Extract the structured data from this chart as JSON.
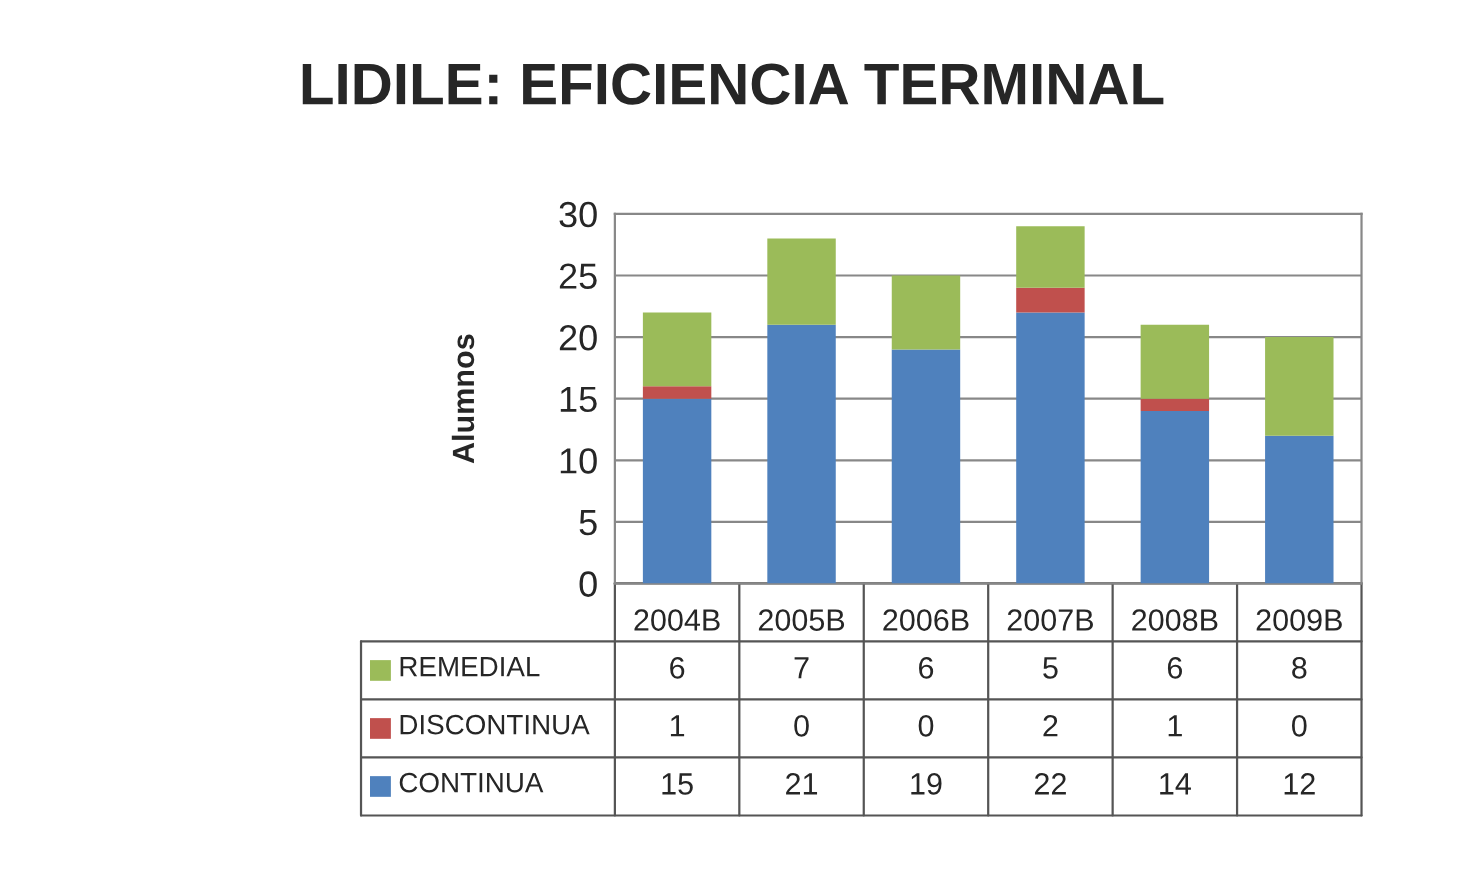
{
  "chart_data": {
    "type": "bar",
    "title": "LIDILE: EFICIENCIA TERMINAL",
    "ylabel": "Alumnos",
    "categories": [
      "2004B",
      "2005B",
      "2006B",
      "2007B",
      "2008B",
      "2009B"
    ],
    "series": [
      {
        "name": "CONTINUA",
        "color": "#4f81bd",
        "values": [
          15,
          21,
          19,
          22,
          14,
          12
        ]
      },
      {
        "name": "DISCONTINUA",
        "color": "#c0504d",
        "values": [
          1,
          0,
          0,
          2,
          1,
          0
        ]
      },
      {
        "name": "REMEDIAL",
        "color": "#9bbb59",
        "values": [
          6,
          7,
          6,
          5,
          6,
          8
        ]
      }
    ],
    "stacked": true,
    "ylim": [
      0,
      30
    ],
    "yticks": [
      0,
      5,
      10,
      15,
      20,
      25,
      30
    ],
    "grid": "y",
    "legend": "bottom",
    "data_labels": true
  }
}
